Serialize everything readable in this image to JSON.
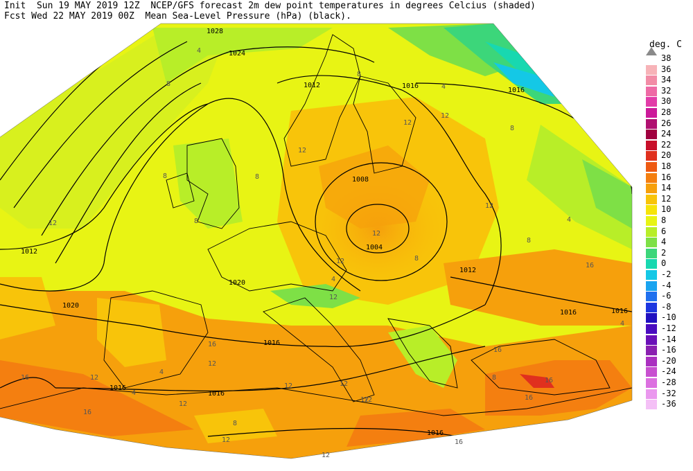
{
  "header": {
    "line1": "Init  Sun 19 MAY 2019 12Z  NCEP/GFS forecast 2m dew point temperatures in degrees Celcius (shaded)",
    "line2": "Fcst Wed 22 MAY 2019 00Z  Mean Sea-Level Pressure (hPa) (black)."
  },
  "colorbar": {
    "unit": "deg. C",
    "entries": [
      {
        "label": "38",
        "color": "#ffffff"
      },
      {
        "label": "36",
        "color": "#f7b3b8"
      },
      {
        "label": "34",
        "color": "#f28ca6"
      },
      {
        "label": "32",
        "color": "#ee6aa5"
      },
      {
        "label": "30",
        "color": "#e23ca8"
      },
      {
        "label": "28",
        "color": "#cc1a9a"
      },
      {
        "label": "26",
        "color": "#b01070"
      },
      {
        "label": "24",
        "color": "#a00040"
      },
      {
        "label": "22",
        "color": "#c8102a"
      },
      {
        "label": "20",
        "color": "#e0301e"
      },
      {
        "label": "18",
        "color": "#ee5a12"
      },
      {
        "label": "16",
        "color": "#f47f10"
      },
      {
        "label": "14",
        "color": "#f6a00c"
      },
      {
        "label": "12",
        "color": "#f8c40a"
      },
      {
        "label": "10",
        "color": "#f6e40a"
      },
      {
        "label": "8",
        "color": "#e8f414"
      },
      {
        "label": "6",
        "color": "#b8ee28"
      },
      {
        "label": "4",
        "color": "#7ee046"
      },
      {
        "label": "2",
        "color": "#3cd67a"
      },
      {
        "label": "0",
        "color": "#18d8b0"
      },
      {
        "label": "-2",
        "color": "#14c8e6"
      },
      {
        "label": "-4",
        "color": "#1aa4f0"
      },
      {
        "label": "-6",
        "color": "#2070ee"
      },
      {
        "label": "-8",
        "color": "#1c36e0"
      },
      {
        "label": "-10",
        "color": "#2010c0"
      },
      {
        "label": "-12",
        "color": "#4a0cc0"
      },
      {
        "label": "-14",
        "color": "#6a10b8"
      },
      {
        "label": "-16",
        "color": "#8a20b0"
      },
      {
        "label": "-20",
        "color": "#aa30c0"
      },
      {
        "label": "-24",
        "color": "#c850d0"
      },
      {
        "label": "-28",
        "color": "#dc70e0"
      },
      {
        "label": "-32",
        "color": "#ea98ee"
      },
      {
        "label": "-36",
        "color": "#f4c0f6"
      }
    ]
  },
  "pressure_labels": [
    "1028",
    "1024",
    "1016",
    "1016",
    "1012",
    "1012",
    "1008",
    "1004",
    "1012",
    "1020",
    "1020",
    "1016",
    "1016",
    "1016",
    "1016",
    "1016",
    "1016"
  ],
  "dewpoint_labels": [
    "4",
    "8",
    "8",
    "8",
    "4",
    "8",
    "12",
    "8",
    "12",
    "12",
    "4",
    "8",
    "12",
    "12",
    "12",
    "12",
    "12",
    "12",
    "8",
    "8",
    "16",
    "16",
    "12",
    "16",
    "16",
    "16",
    "16",
    "16",
    "12",
    "12",
    "12",
    "4",
    "4",
    "8",
    "4",
    "4",
    "16",
    "12",
    "8",
    "12",
    "12",
    "12"
  ]
}
